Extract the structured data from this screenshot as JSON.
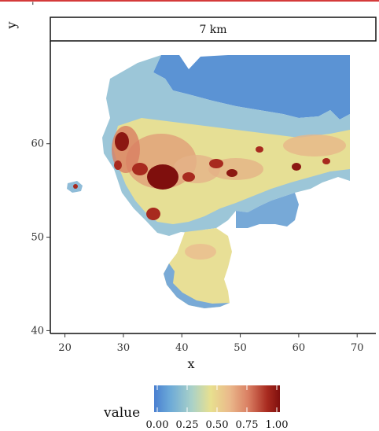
{
  "chart_data": {
    "type": "heatmap",
    "title": "",
    "panel_label": "7 km",
    "xlabel": "x",
    "ylabel": "y",
    "x_ticks": [
      20,
      30,
      40,
      50,
      60,
      70
    ],
    "y_ticks": [
      40,
      50,
      60
    ],
    "xlim": [
      17.5,
      73.2
    ],
    "ylim": [
      39.7,
      71.0
    ],
    "grid": false,
    "legend": {
      "title": "value",
      "placement": "bottom",
      "range": [
        0,
        1
      ],
      "breaks": [
        "0.00",
        "0.25",
        "0.50",
        "0.75",
        "1.00"
      ],
      "colors": [
        "#4a7fd0",
        "#6aa8d8",
        "#a9d1c8",
        "#e8e08f",
        "#eab98b",
        "#d97e62",
        "#a82a1f",
        "#7f0f0d"
      ]
    },
    "top_mark": "'",
    "description_values": {
      "low_region": "northeast (x 45–70, y 62–68) mostly 0.0–0.25",
      "high_hotspots": [
        {
          "x": 37,
          "y": 55.5,
          "value": 1.0
        },
        {
          "x": 30,
          "y": 59.5,
          "value": 0.95
        },
        {
          "x": 57,
          "y": 57,
          "value": 0.85
        }
      ]
    }
  }
}
